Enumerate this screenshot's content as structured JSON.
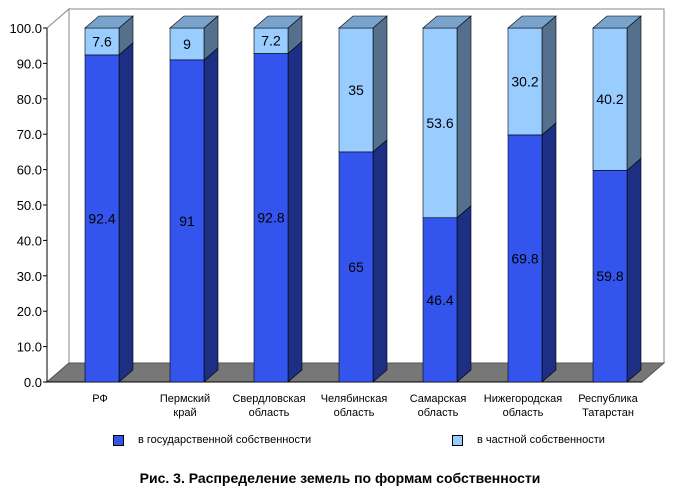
{
  "chart_data": {
    "type": "bar",
    "stacked": true,
    "three_d": true,
    "categories": [
      [
        "РФ"
      ],
      [
        "Пермский",
        "край"
      ],
      [
        "Свердловская",
        "область"
      ],
      [
        "Челябинская",
        "область"
      ],
      [
        "Самарская",
        "область"
      ],
      [
        "Нижегородская",
        "область"
      ],
      [
        "Республика",
        "Татарстан"
      ]
    ],
    "series": [
      {
        "name": "в государственной собственности",
        "values": [
          92.4,
          91,
          92.8,
          65,
          46.4,
          69.8,
          59.8
        ],
        "color": "#3355ee"
      },
      {
        "name": "в частной собственности",
        "values": [
          7.6,
          9,
          7.2,
          35,
          53.6,
          30.2,
          40.2
        ],
        "color": "#99ccff"
      }
    ],
    "ylim": [
      0,
      100
    ],
    "yticks": [
      "0.0",
      "10.0",
      "20.0",
      "30.0",
      "40.0",
      "50.0",
      "60.0",
      "70.0",
      "80.0",
      "90.0",
      "100.0"
    ],
    "grid": false,
    "legend": "bottom",
    "floor_color": "#777777"
  },
  "caption": "Рис. 3. Распределение земель по формам собственности"
}
